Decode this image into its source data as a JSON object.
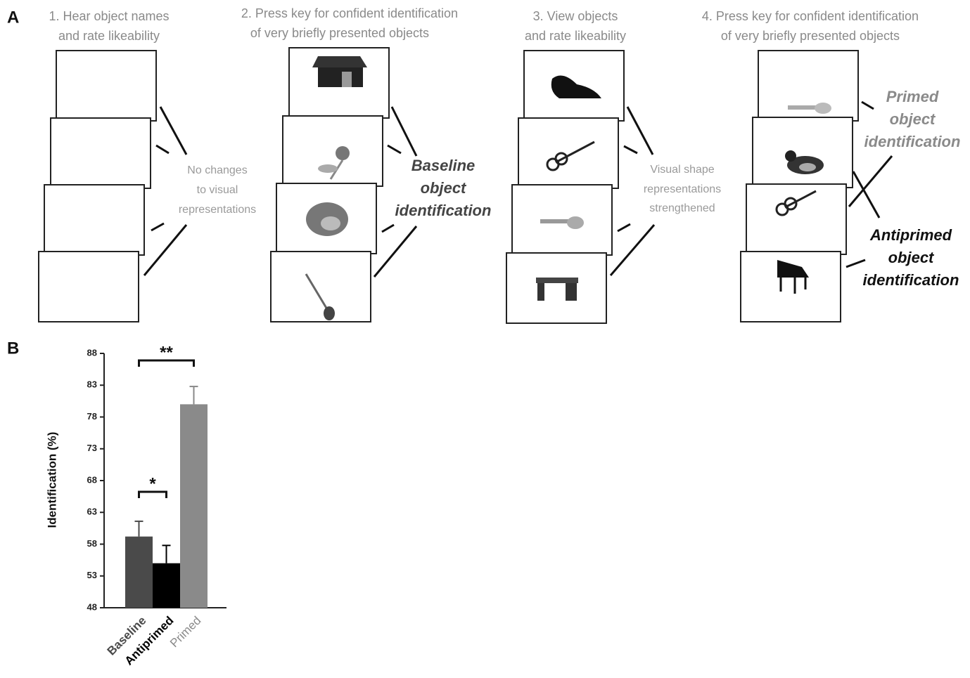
{
  "panels": [
    "A",
    "B"
  ],
  "steps": [
    {
      "heading": [
        "1.  Hear object names",
        "and rate likeability"
      ],
      "note": [
        "No changes",
        "to visual",
        "representations"
      ]
    },
    {
      "heading": [
        "2.  Press key for confident identification",
        "of very briefly presented objects"
      ],
      "note": [
        "Baseline",
        "object",
        "identification"
      ]
    },
    {
      "heading": [
        "3.  View objects",
        "and rate likeability"
      ],
      "note": [
        "Visual shape",
        "representations",
        "strengthened"
      ]
    },
    {
      "heading": [
        "4.  Press key for confident identification",
        "of very briefly presented objects"
      ],
      "note": [
        "Primed",
        "object",
        "identification"
      ],
      "note2": [
        "Antiprimed",
        "object",
        "identification"
      ]
    }
  ],
  "chart_data": {
    "type": "bar",
    "y_label": "Identification (%)",
    "categories": [
      "Baseline",
      "Antiprimed",
      "Primed"
    ],
    "values": [
      59.2,
      55,
      80
    ],
    "errors": [
      2.4,
      2.8,
      2.8
    ],
    "colors": [
      "#4a4a4a",
      "#000000",
      "#8a8a8a"
    ],
    "ylim": [
      48,
      88
    ],
    "yticks": [
      48,
      53,
      58,
      63,
      68,
      73,
      78,
      83,
      88
    ],
    "annotations": [
      "**",
      "*"
    ]
  }
}
